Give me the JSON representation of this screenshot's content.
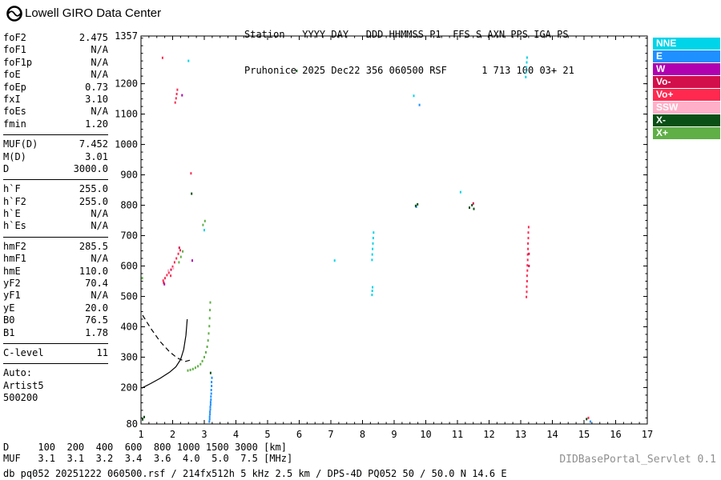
{
  "header": {
    "brand": "Lowell GIRO Data Center",
    "station_line1": "Station   YYYY DAY   DDD HHMMSS P1  FFS S AXN PPS IGA PS",
    "station_line2": "Pruhonice 2025 Dec22 356 060500 RSF      1 713 100 03+ 21"
  },
  "params": {
    "sections": [
      {
        "rows": [
          [
            "foF2",
            "2.475"
          ],
          [
            "foF1",
            "N/A"
          ],
          [
            "foF1p",
            "N/A"
          ],
          [
            "foE",
            "N/A"
          ],
          [
            "foEp",
            "0.73"
          ],
          [
            "fxI",
            "3.10"
          ],
          [
            "foEs",
            "N/A"
          ],
          [
            "fmin",
            "1.20"
          ]
        ]
      },
      {
        "rows": [
          [
            "MUF(D)",
            "7.452"
          ],
          [
            "M(D)",
            "3.01"
          ],
          [
            "D",
            "3000.0"
          ]
        ]
      },
      {
        "rows": [
          [
            "h`F",
            "255.0"
          ],
          [
            "h`F2",
            "255.0"
          ],
          [
            "h`E",
            "N/A"
          ],
          [
            "h`Es",
            "N/A"
          ]
        ]
      },
      {
        "rows": [
          [
            "hmF2",
            "285.5"
          ],
          [
            "hmF1",
            "N/A"
          ],
          [
            "hmE",
            "110.0"
          ],
          [
            "yF2",
            "70.4"
          ],
          [
            "yF1",
            "N/A"
          ],
          [
            "yE",
            "20.0"
          ],
          [
            "B0",
            "76.5"
          ],
          [
            "B1",
            "1.78"
          ]
        ]
      },
      {
        "rows": [
          [
            "C-level",
            "11"
          ]
        ]
      }
    ],
    "auto": [
      "Auto:",
      "Artist5",
      "500200"
    ]
  },
  "footer": {
    "d_label": "D",
    "d_values": [
      "100",
      "200",
      "400",
      "600",
      "800",
      "1000",
      "1500",
      "3000"
    ],
    "d_unit": "[km]",
    "muf_label": "MUF",
    "muf_values": [
      "3.1",
      "3.1",
      "3.2",
      "3.4",
      "3.6",
      "4.0",
      "5.0",
      "7.5"
    ],
    "muf_unit": "[MHz]",
    "info_line": "db pq052 20251222 060500.rsf / 214fx512h 5 kHz 2.5 km / DPS-4D PQ052 50 / 50.0 N 14.6 E",
    "servlet": "DIDBasePortal_Servlet 0.1"
  },
  "chart_data": {
    "type": "scatter",
    "title": "Ionogram echoes, virtual height [km] vs frequency [MHz]",
    "xlabel": "[MHz]",
    "ylabel": "[km]",
    "xlim": [
      1,
      17
    ],
    "ylim": [
      80,
      1357
    ],
    "x_ticks": [
      1,
      2,
      3,
      4,
      5,
      6,
      7,
      8,
      9,
      10,
      11,
      12,
      13,
      14,
      15,
      16,
      17
    ],
    "y_ticks": [
      80,
      200,
      300,
      400,
      500,
      600,
      700,
      800,
      900,
      1000,
      1100,
      1200,
      1357
    ],
    "grid": false,
    "legend_position": "right",
    "legend": [
      {
        "label": "NNE",
        "color": "#00D4E8"
      },
      {
        "label": "E",
        "color": "#1E90FF"
      },
      {
        "label": "W",
        "color": "#B000B0"
      },
      {
        "label": "Vo-",
        "color": "#D30F4B"
      },
      {
        "label": "Vo+",
        "color": "#FF2950"
      },
      {
        "label": "SSW",
        "color": "#FFB0C8"
      },
      {
        "label": "X-",
        "color": "#0A4F16"
      },
      {
        "label": "X+",
        "color": "#5FAF46"
      }
    ],
    "series": [
      {
        "name": "NNE",
        "points": [
          [
            8.3,
            505
          ],
          [
            8.31,
            518
          ],
          [
            8.32,
            530
          ],
          [
            8.3,
            620
          ],
          [
            8.31,
            638
          ],
          [
            8.32,
            656
          ],
          [
            8.33,
            674
          ],
          [
            8.34,
            692
          ],
          [
            8.35,
            710
          ],
          [
            11.1,
            843
          ],
          [
            13.16,
            1222
          ],
          [
            13.17,
            1238
          ],
          [
            13.18,
            1254
          ],
          [
            13.19,
            1270
          ],
          [
            13.2,
            1286
          ],
          [
            2.5,
            1275
          ],
          [
            3.0,
            718
          ],
          [
            7.12,
            618
          ],
          [
            9.62,
            1160
          ]
        ]
      },
      {
        "name": "E",
        "points": [
          [
            3.16,
            88
          ],
          [
            3.17,
            96
          ],
          [
            3.17,
            104
          ],
          [
            3.18,
            112
          ],
          [
            3.18,
            120
          ],
          [
            3.19,
            128
          ],
          [
            3.19,
            136
          ],
          [
            3.2,
            144
          ],
          [
            3.2,
            152
          ],
          [
            3.21,
            160
          ],
          [
            3.21,
            170
          ],
          [
            3.22,
            180
          ],
          [
            3.22,
            192
          ],
          [
            3.23,
            205
          ],
          [
            3.23,
            218
          ],
          [
            3.24,
            232
          ],
          [
            9.8,
            1130
          ],
          [
            9.7,
            795
          ],
          [
            15.2,
            88
          ]
        ]
      },
      {
        "name": "W",
        "points": [
          [
            1.74,
            540
          ],
          [
            2.3,
            1162
          ],
          [
            2.62,
            618
          ]
        ]
      },
      {
        "name": "Vo-",
        "points": [
          [
            1.72,
            545
          ],
          [
            1.95,
            588
          ],
          [
            2.21,
            660
          ],
          [
            13.26,
            640
          ],
          [
            13.26,
            600
          ],
          [
            11.5,
            806
          ]
        ]
      },
      {
        "name": "Vo+",
        "points": [
          [
            1.7,
            552
          ],
          [
            1.76,
            560
          ],
          [
            1.82,
            570
          ],
          [
            1.88,
            578
          ],
          [
            1.94,
            568
          ],
          [
            2.0,
            598
          ],
          [
            2.06,
            612
          ],
          [
            2.12,
            625
          ],
          [
            2.18,
            640
          ],
          [
            2.24,
            652
          ],
          [
            2.08,
            1138
          ],
          [
            2.11,
            1152
          ],
          [
            2.13,
            1166
          ],
          [
            2.15,
            1180
          ],
          [
            1.68,
            1285
          ],
          [
            2.58,
            905
          ],
          [
            13.18,
            498
          ],
          [
            13.19,
            515
          ],
          [
            13.19,
            532
          ],
          [
            13.2,
            550
          ],
          [
            13.2,
            568
          ],
          [
            13.21,
            585
          ],
          [
            13.21,
            602
          ],
          [
            13.22,
            620
          ],
          [
            13.22,
            638
          ],
          [
            13.23,
            656
          ],
          [
            13.23,
            674
          ],
          [
            13.24,
            692
          ],
          [
            13.24,
            710
          ],
          [
            13.25,
            728
          ],
          [
            15.14,
            100
          ]
        ]
      },
      {
        "name": "SSW",
        "points": [
          [
            2.02,
            592
          ],
          [
            1.86,
            585
          ]
        ]
      },
      {
        "name": "X-",
        "points": [
          [
            1.05,
            95
          ],
          [
            1.1,
            103
          ],
          [
            2.6,
            838
          ],
          [
            9.68,
            798
          ],
          [
            9.74,
            803
          ],
          [
            11.38,
            792
          ],
          [
            11.46,
            800
          ],
          [
            11.52,
            788
          ],
          [
            3.2,
            248
          ],
          [
            5.92,
            1242
          ],
          [
            15.08,
            96
          ]
        ]
      },
      {
        "name": "X+",
        "points": [
          [
            2.48,
            256
          ],
          [
            2.56,
            258
          ],
          [
            2.64,
            261
          ],
          [
            2.72,
            265
          ],
          [
            2.8,
            270
          ],
          [
            2.88,
            277
          ],
          [
            2.94,
            287
          ],
          [
            3.0,
            300
          ],
          [
            3.05,
            316
          ],
          [
            3.09,
            334
          ],
          [
            3.12,
            355
          ],
          [
            3.14,
            378
          ],
          [
            3.16,
            402
          ],
          [
            3.17,
            428
          ],
          [
            3.18,
            455
          ],
          [
            3.19,
            480
          ],
          [
            2.2,
            612
          ],
          [
            2.26,
            630
          ],
          [
            2.32,
            648
          ],
          [
            2.96,
            735
          ],
          [
            3.02,
            748
          ],
          [
            1.04,
            560
          ]
        ]
      }
    ],
    "curves": [
      {
        "name": "profile-trace",
        "style": "solid",
        "points": [
          [
            1.02,
            198
          ],
          [
            1.3,
            213
          ],
          [
            1.6,
            230
          ],
          [
            1.9,
            250
          ],
          [
            2.1,
            268
          ],
          [
            2.25,
            292
          ],
          [
            2.35,
            325
          ],
          [
            2.42,
            372
          ],
          [
            2.46,
            425
          ]
        ]
      },
      {
        "name": "muf-curve",
        "style": "dashed",
        "points": [
          [
            1.05,
            438
          ],
          [
            1.3,
            396
          ],
          [
            1.6,
            352
          ],
          [
            1.9,
            318
          ],
          [
            2.15,
            297
          ],
          [
            2.4,
            286
          ],
          [
            2.62,
            292
          ]
        ]
      }
    ]
  }
}
